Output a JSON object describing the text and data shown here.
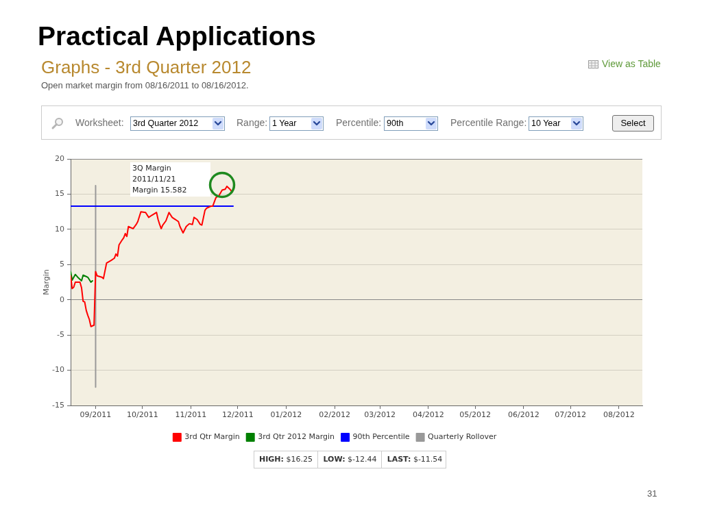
{
  "chart_data": {
    "type": "line",
    "title": "Graphs - 3rd Quarter 2012",
    "subtitle": "Open market margin from 08/16/2011 to 08/16/2012.",
    "ylabel": "Margin",
    "series": [
      {
        "name": "3rd Qtr Margin",
        "color": "#ff0000",
        "x": [
          "2011-08-16",
          "2011-08-17",
          "2011-08-18",
          "2011-08-19",
          "2011-08-22",
          "2011-08-23",
          "2011-08-24",
          "2011-08-25",
          "2011-08-26",
          "2011-08-27",
          "2011-08-28",
          "2011-08-29",
          "2011-08-30",
          "2011-08-31",
          "2011-09-01",
          "2011-09-02",
          "2011-09-05",
          "2011-09-06",
          "2011-09-08",
          "2011-09-11",
          "2011-09-13",
          "2011-09-14",
          "2011-09-15",
          "2011-09-16",
          "2011-09-18",
          "2011-09-19",
          "2011-09-20",
          "2011-09-21",
          "2011-09-22",
          "2011-09-25",
          "2011-09-27",
          "2011-09-28",
          "2011-09-30",
          "2011-10-03",
          "2011-10-05",
          "2011-10-07",
          "2011-10-10",
          "2011-10-11",
          "2011-10-12",
          "2011-10-13",
          "2011-10-14",
          "2011-10-16",
          "2011-10-18",
          "2011-10-20",
          "2011-10-24",
          "2011-10-25",
          "2011-10-27",
          "2011-10-29",
          "2011-10-31",
          "2011-11-02",
          "2011-11-03",
          "2011-11-05",
          "2011-11-07",
          "2011-11-08",
          "2011-11-10",
          "2011-11-11",
          "2011-11-14",
          "2011-11-15",
          "2011-11-17",
          "2011-11-19",
          "2011-11-21",
          "2011-11-23",
          "2011-11-24",
          "2011-11-26",
          "2011-11-27"
        ],
        "values": [
          3.4,
          1.6,
          1.8,
          2.5,
          2.5,
          1.7,
          -0.2,
          -0.3,
          -1.5,
          -2.2,
          -2.8,
          -3.8,
          -3.7,
          -3.6,
          4.0,
          3.4,
          3.2,
          3.0,
          5.2,
          5.6,
          5.9,
          6.5,
          6.2,
          7.8,
          8.5,
          8.8,
          9.4,
          9.0,
          10.4,
          10.1,
          10.7,
          11.1,
          12.5,
          12.4,
          11.7,
          12.0,
          12.4,
          11.4,
          10.7,
          10.1,
          10.6,
          11.2,
          12.4,
          11.7,
          11.1,
          10.4,
          9.5,
          10.4,
          10.8,
          10.7,
          11.7,
          11.4,
          10.7,
          10.6,
          12.7,
          13.0,
          13.3,
          13.3,
          14.5,
          14.8,
          15.582,
          15.7,
          16.1,
          15.7,
          15.4
        ]
      },
      {
        "name": "3rd Qtr 2012 Margin",
        "color": "#008000",
        "x": [
          "2011-08-16",
          "2011-08-17",
          "2011-08-19",
          "2011-08-21",
          "2011-08-23",
          "2011-08-24",
          "2011-08-26",
          "2011-08-27",
          "2011-08-29",
          "2011-08-30"
        ],
        "values": [
          4.0,
          2.8,
          3.6,
          3.1,
          2.7,
          3.5,
          3.3,
          3.2,
          2.5,
          2.7
        ]
      },
      {
        "name": "90th Percentile",
        "color": "#0000ff",
        "x": [
          "2011-08-16",
          "2011-11-28"
        ],
        "values": [
          13.3,
          13.3
        ]
      },
      {
        "name": "Quarterly Rollover",
        "color": "#999999",
        "x": [
          "2011-09-01",
          "2011-09-01"
        ],
        "values": [
          -12.4,
          16.2
        ]
      }
    ],
    "xlim": [
      "2011-08-16",
      "2012-08-16"
    ],
    "xticks": [
      {
        "value": "2011-09-01",
        "label": "09/2011"
      },
      {
        "value": "2011-10-01",
        "label": "10/2011"
      },
      {
        "value": "2011-11-01",
        "label": "11/2011"
      },
      {
        "value": "2011-12-01",
        "label": "12/2011"
      },
      {
        "value": "2012-01-01",
        "label": "01/2012"
      },
      {
        "value": "2012-02-01",
        "label": "02/2012"
      },
      {
        "value": "2012-03-01",
        "label": "03/2012"
      },
      {
        "value": "2012-04-01",
        "label": "04/2012"
      },
      {
        "value": "2012-05-01",
        "label": "05/2012"
      },
      {
        "value": "2012-06-01",
        "label": "06/2012"
      },
      {
        "value": "2012-07-01",
        "label": "07/2012"
      },
      {
        "value": "2012-08-01",
        "label": "08/2012"
      }
    ],
    "ylim": [
      -15,
      20
    ],
    "yticks": [
      -15,
      -10,
      -5,
      0,
      5,
      10,
      15,
      20
    ],
    "grid": "y",
    "legend": "bottom",
    "annotations": [
      "Practical Applications",
      "View as Table",
      "Worksheet:",
      "3rd Quarter 2012",
      "Range:",
      "1 Year",
      "Percentile:",
      "90th",
      "Percentile Range:",
      "10 Year",
      "Select",
      "3Q Margin\n2011/11/21\nMargin 15.582",
      "HIGH: $16.25",
      "LOW: $-12.44",
      "LAST: $-11.54",
      "31"
    ]
  }
}
